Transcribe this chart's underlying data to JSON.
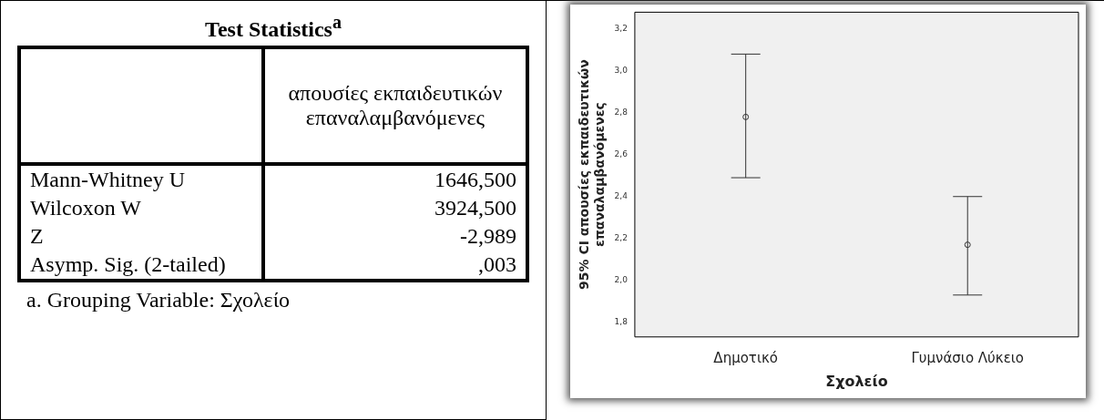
{
  "chart_data": [
    {
      "type": "other",
      "title": "Test Statistics$^{a}$",
      "xlabel": "απουσίες εκπαιδευτικών επαναλαμβανόμενες",
      "categories": [
        "Mann-Whitney U",
        "Wilcoxon W",
        "Z",
        "Asymp. Sig. (2-tailed)"
      ],
      "value_labels": [
        "1646,500",
        "3924,500",
        "-2,989",
        ",003"
      ],
      "annotations": [
        "a. Grouping Variable: Σχολείο"
      ]
    },
    {
      "type": "scatter",
      "xlabel": "Σχολείο",
      "ylabel": "95% CI απουσίες εκπαιδευτικών επαναλαμβανόμενες",
      "categories": [
        "Δημοτικό",
        "Γυμνάσιο Λύκειο"
      ],
      "values": [
        2.78,
        2.17
      ],
      "errors": [
        [
          2.49,
          3.08
        ],
        [
          1.93,
          2.4
        ]
      ],
      "color": "#333333",
      "marker": "circle",
      "ylim": [
        1.73,
        3.28
      ],
      "yticks": [
        {
          "value": 1.8,
          "label": "1,8"
        },
        {
          "value": 2.0,
          "label": "2,0"
        },
        {
          "value": 2.2,
          "label": "2,2"
        },
        {
          "value": 2.4,
          "label": "2,4"
        },
        {
          "value": 2.6,
          "label": "2,6"
        },
        {
          "value": 2.8,
          "label": "2,8"
        },
        {
          "value": 3.0,
          "label": "3,0"
        },
        {
          "value": 3.2,
          "label": "3,2"
        }
      ],
      "grid": false,
      "legend": false
    }
  ]
}
